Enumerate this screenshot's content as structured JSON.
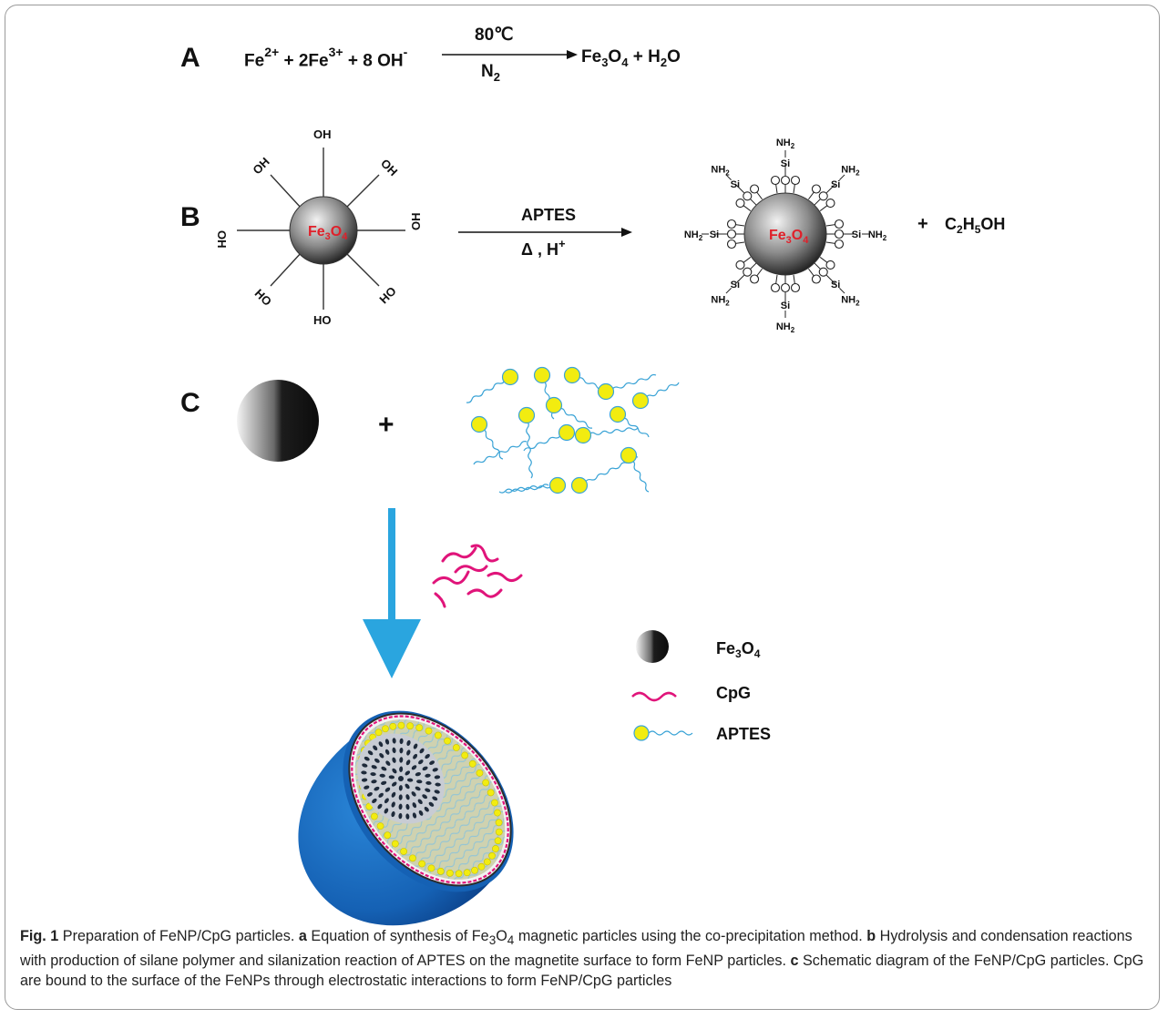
{
  "panel_a": {
    "letter": "A",
    "fe2": "Fe",
    "fe2_charge": "2+",
    "plus1": "+",
    "fe3": "2Fe",
    "fe3_charge": "3+",
    "plus2": "+",
    "oh": "8 OH",
    "oh_charge": "-",
    "condition_top": "80℃",
    "condition_bottom": "N",
    "condition_bottom_sub": "2",
    "product1": "Fe3O4",
    "plus3": "+",
    "product2": "H2O"
  },
  "panel_b": {
    "letter": "B",
    "core_label": "Fe3O4",
    "core_label_main": "Fe",
    "core_label_sub1": "3",
    "core_label_o": "O",
    "core_label_sub2": "4",
    "hydroxyl": "OH",
    "hydroxyl_rev": "HO",
    "reagent": "APTES",
    "conditions": "Δ , H",
    "conditions_sup": "+",
    "amine": "NH",
    "amine_sub": "2",
    "silicon": "Si",
    "oxygen": "O",
    "plus": "+",
    "byproduct": "C2H5OH"
  },
  "panel_c": {
    "letter": "C",
    "plus": "+"
  },
  "legend": {
    "items": [
      {
        "label": "Fe3O4",
        "icon": "fe3o4-sphere-icon"
      },
      {
        "label": "CpG",
        "icon": "cpg-wave-icon"
      },
      {
        "label": "APTES",
        "icon": "aptes-chain-icon"
      }
    ]
  },
  "caption": {
    "fig_label": "Fig. 1",
    "title": "Preparation of FeNP/CpG particles.",
    "a_label": "a",
    "a_text_1": "Equation of synthesis of Fe",
    "a_sub1": "3",
    "a_text_2": "O",
    "a_sub2": "4",
    "a_text_3": "magnetic particles using the co-precipitation method.",
    "b_label": "b",
    "b_text": "Hydrolysis and condensation reactions with production of silane polymer and silanization reaction of APTES on the magnetite surface to form FeNP particles.",
    "c_label": "c",
    "c_text": "Schematic diagram of the FeNP/CpG particles. CpG are bound to the surface of the FeNPs through electrostatic interactions to form FeNP/CpG particles"
  },
  "colors": {
    "magenta": "#e0147a",
    "yellow": "#f2ec10",
    "cyan": "#3aa3d6",
    "arrow_blue": "#2aa5df",
    "shell_blue": "#1a6fc4",
    "core_red": "#e0202a"
  }
}
